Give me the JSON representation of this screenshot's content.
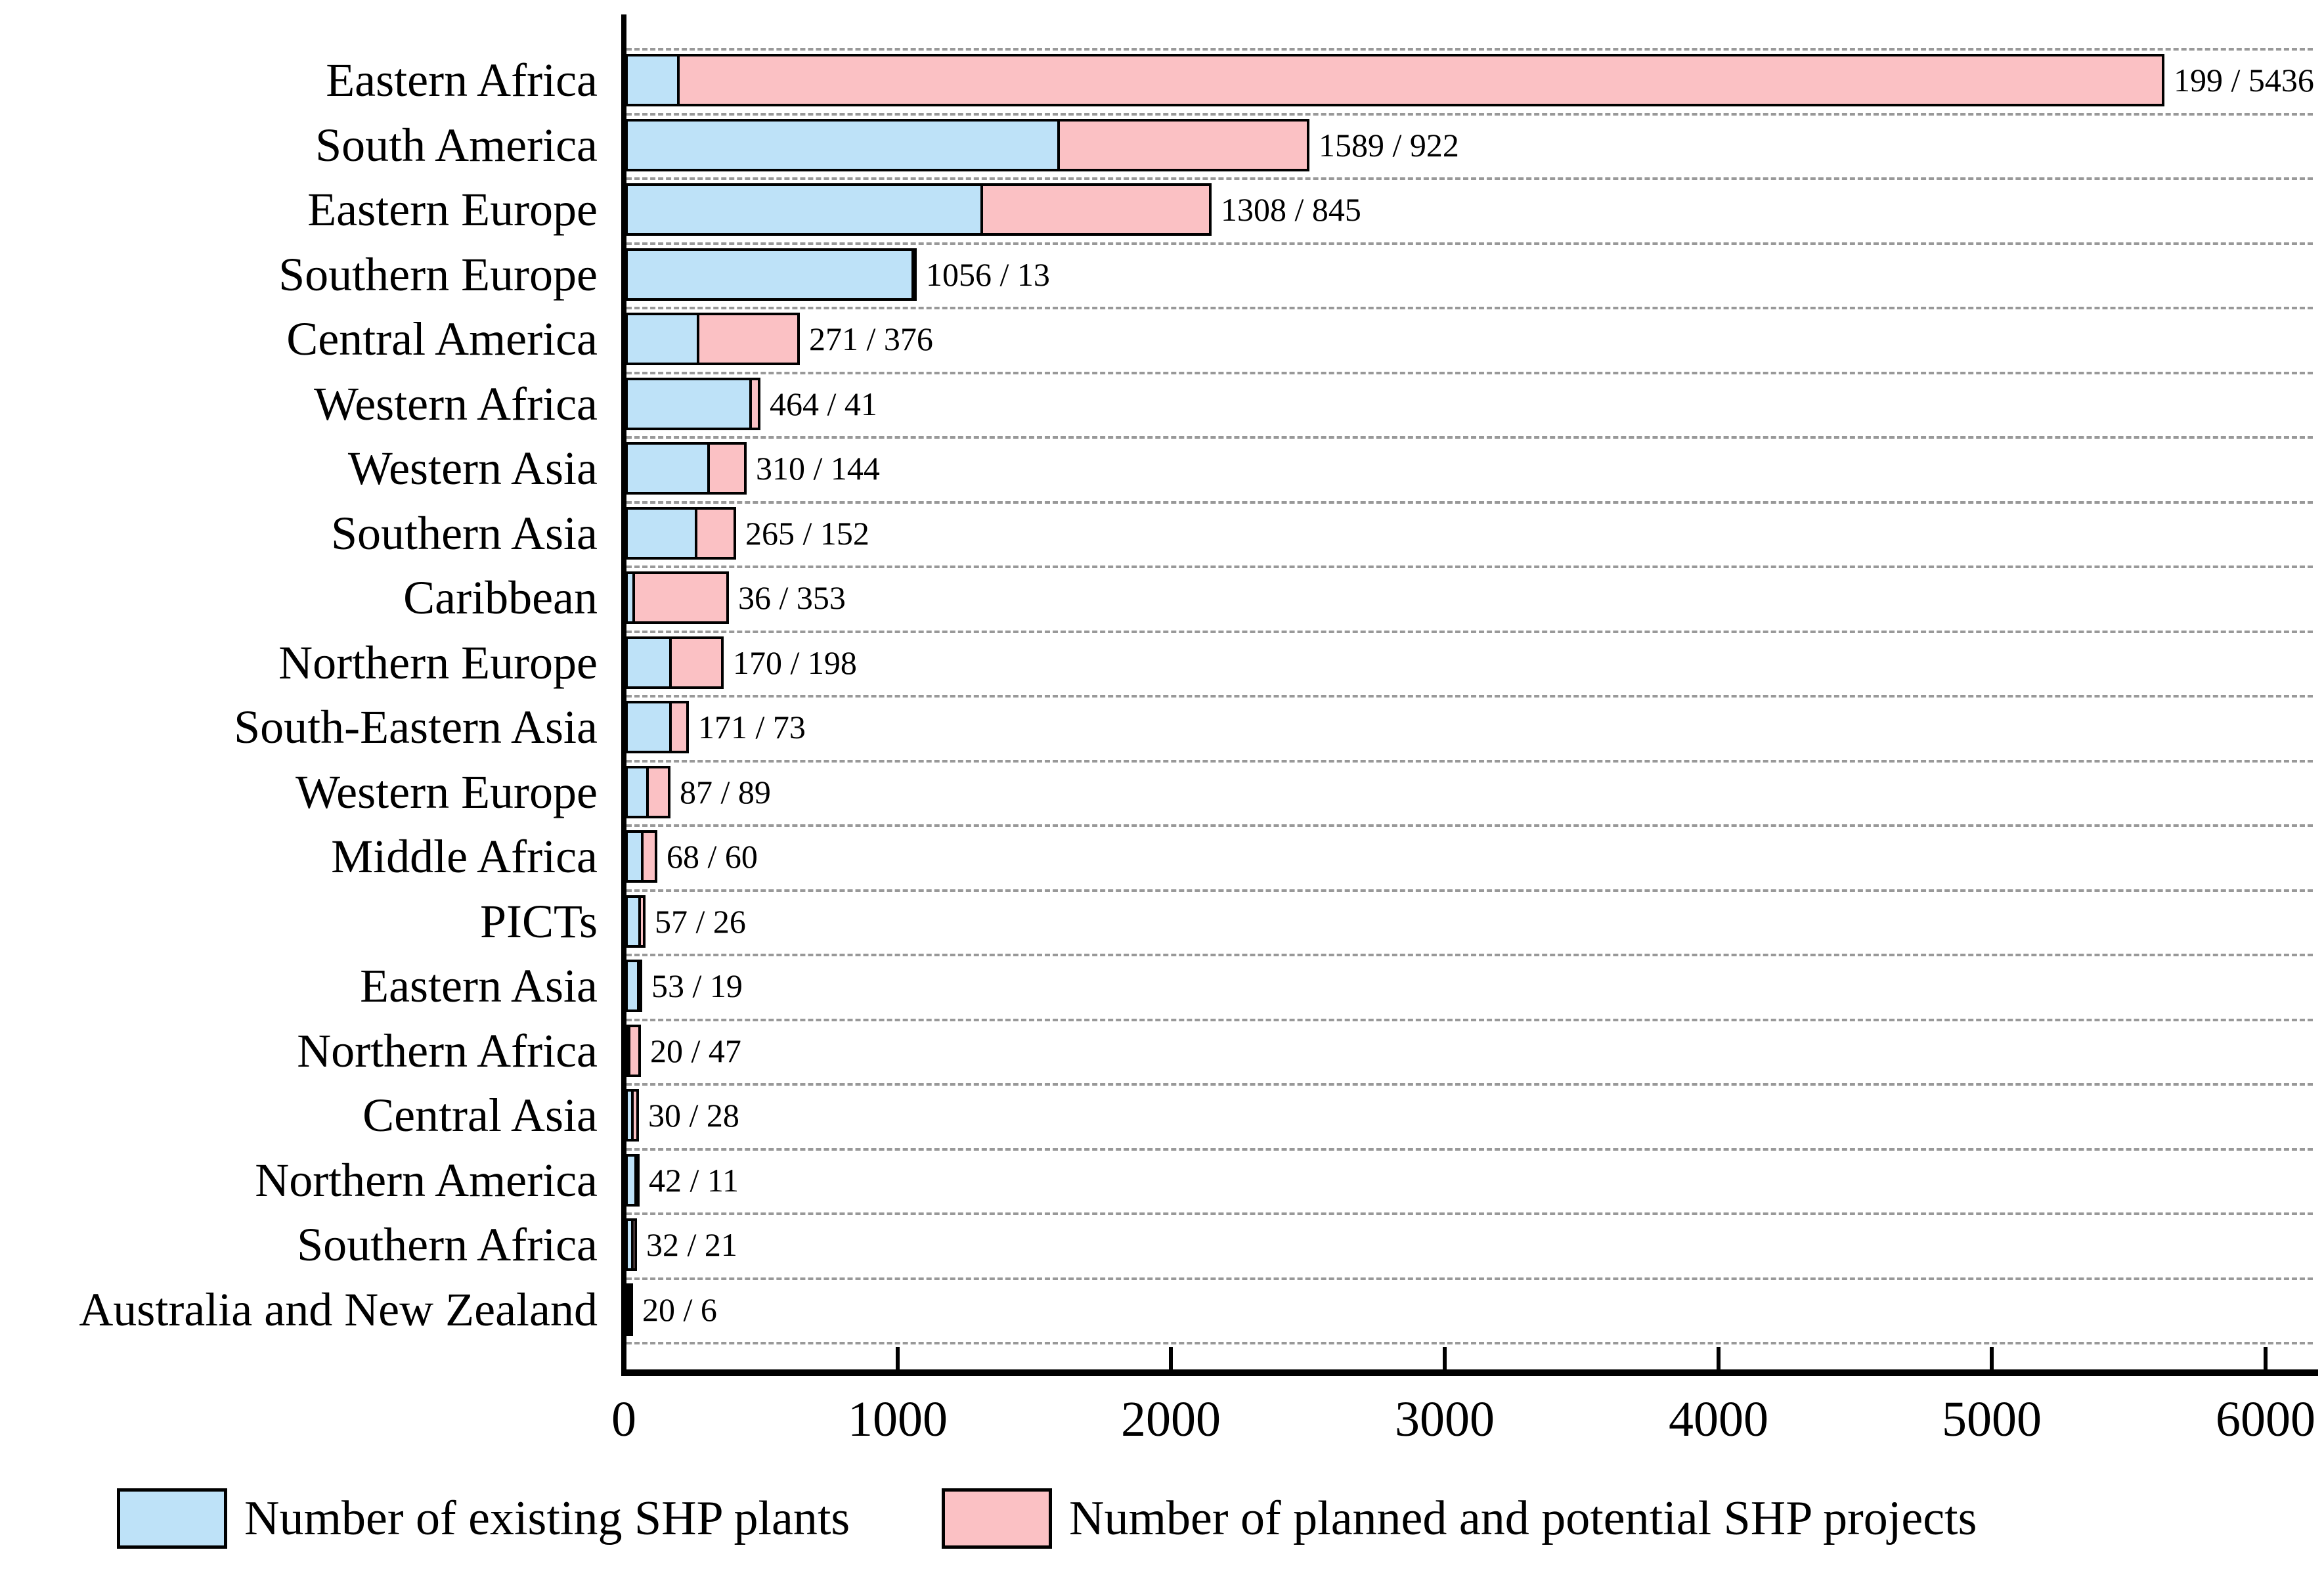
{
  "chart_data": {
    "type": "bar",
    "orientation": "horizontal",
    "stacked": true,
    "title": "",
    "xlabel": "",
    "ylabel": "",
    "xlim": [
      0,
      6000
    ],
    "x_ticks": [
      "0",
      "1000",
      "2000",
      "3000",
      "4000",
      "5000",
      "6000"
    ],
    "grid": "dashed horizontal category separators",
    "legend_position": "bottom",
    "categories": [
      "Eastern Africa",
      "South America",
      "Eastern Europe",
      "Southern Europe",
      "Central America",
      "Western Africa",
      "Western Asia",
      "Southern Asia",
      "Caribbean",
      "Northern Europe",
      "South-Eastern Asia",
      "Western Europe",
      "Middle Africa",
      "PICTs",
      "Eastern Asia",
      "Northern Africa",
      "Central Asia",
      "Northern America",
      "Southern Africa",
      "Australia and New Zealand"
    ],
    "series": [
      {
        "name": "Number of existing SHP plants",
        "color": "#BEE2F8",
        "values": [
          199,
          1589,
          1308,
          1056,
          271,
          464,
          310,
          265,
          36,
          170,
          171,
          87,
          68,
          57,
          53,
          20,
          30,
          42,
          32,
          20
        ]
      },
      {
        "name": "Number of planned and potential SHP projects",
        "color": "#FBC1C4",
        "values": [
          5436,
          922,
          845,
          13,
          376,
          41,
          144,
          152,
          353,
          198,
          73,
          89,
          60,
          26,
          19,
          47,
          28,
          11,
          21,
          6
        ]
      }
    ],
    "bar_labels": [
      "199 / 5436",
      "1589 / 922",
      "1308 / 845",
      "1056 / 13",
      "271 / 376",
      "464 / 41",
      "310 / 144",
      "265 / 152",
      "36 / 353",
      "170 / 198",
      "171 / 73",
      "87 / 89",
      "68 / 60",
      "57 / 26",
      "53 / 19",
      "20 / 47",
      "30 / 28",
      "42 / 11",
      "32 / 21",
      "20 / 6"
    ]
  },
  "colors": {
    "existing_fill": "#BEE2F8",
    "planned_fill": "#FBC1C4",
    "bar_border": "#000000",
    "axis": "#000000",
    "gridline": "#999999",
    "text": "#000000",
    "background": "#ffffff"
  },
  "legend": {
    "items": [
      {
        "label": "Number of existing SHP plants",
        "color": "#BEE2F8"
      },
      {
        "label": "Number of planned and potential SHP projects",
        "color": "#FBC1C4"
      }
    ]
  }
}
